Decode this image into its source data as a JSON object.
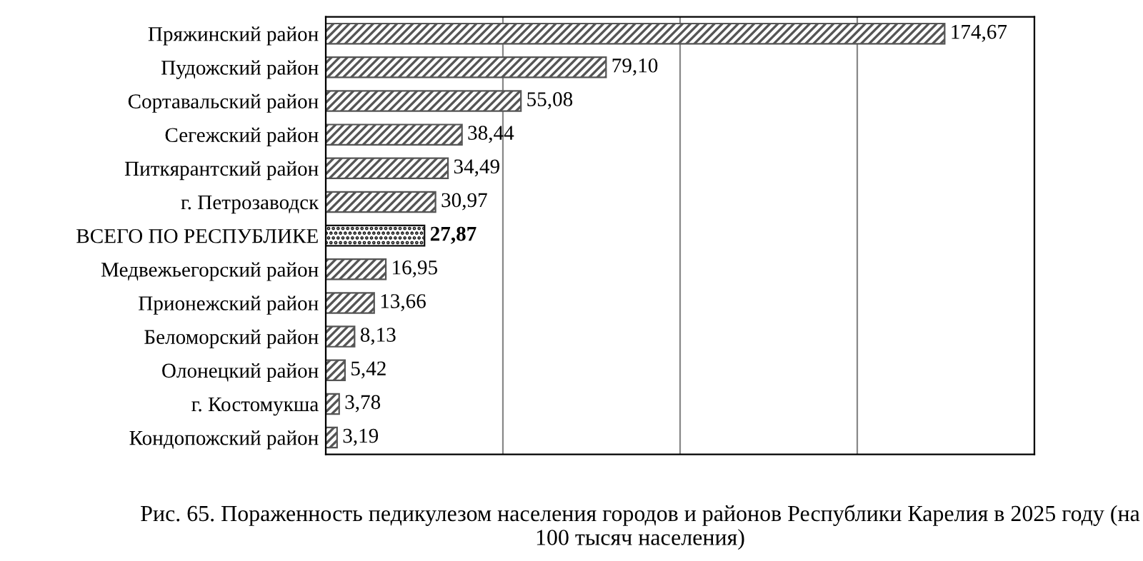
{
  "chart_data": {
    "type": "bar",
    "orientation": "horizontal",
    "title": "Рис. 65. Пораженность педикулезом населения городов и районов Республики Карелия в 2025 году (на 100 тысяч населения)",
    "categories": [
      "Пряжинский район",
      "Пудожский район",
      "Сортавальский район",
      "Сегежский район",
      "Питкярантский район",
      "г. Петрозаводск",
      "ВСЕГО ПО РЕСПУБЛИКЕ",
      "Медвежьегорский район",
      "Прионежский район",
      "Беломорский район",
      "Олонецкий район",
      "г. Костомукша",
      "Кондопожский район"
    ],
    "values": [
      174.67,
      79.1,
      55.08,
      38.44,
      34.49,
      30.97,
      27.87,
      16.95,
      13.66,
      8.13,
      5.42,
      3.78,
      3.19
    ],
    "value_labels": [
      "174,67",
      "79,10",
      "55,08",
      "38,44",
      "34,49",
      "30,97",
      "27,87",
      "16,95",
      "13,66",
      "8,13",
      "5,42",
      "3,78",
      "3,19"
    ],
    "colors": [
      "#555555",
      "#555555",
      "#555555",
      "#555555",
      "#555555",
      "#555555",
      "#111111",
      "#555555",
      "#555555",
      "#555555",
      "#555555",
      "#555555",
      "#555555"
    ],
    "xlim": [
      0,
      200
    ],
    "xticks": [
      {
        "value": 0,
        "label": null
      },
      {
        "value": 50,
        "label": null
      },
      {
        "value": 100,
        "label": null
      },
      {
        "value": 150,
        "label": null
      },
      {
        "value": 200,
        "label": null
      }
    ],
    "grid": "x",
    "tick_labels": "y",
    "legend": false
  }
}
